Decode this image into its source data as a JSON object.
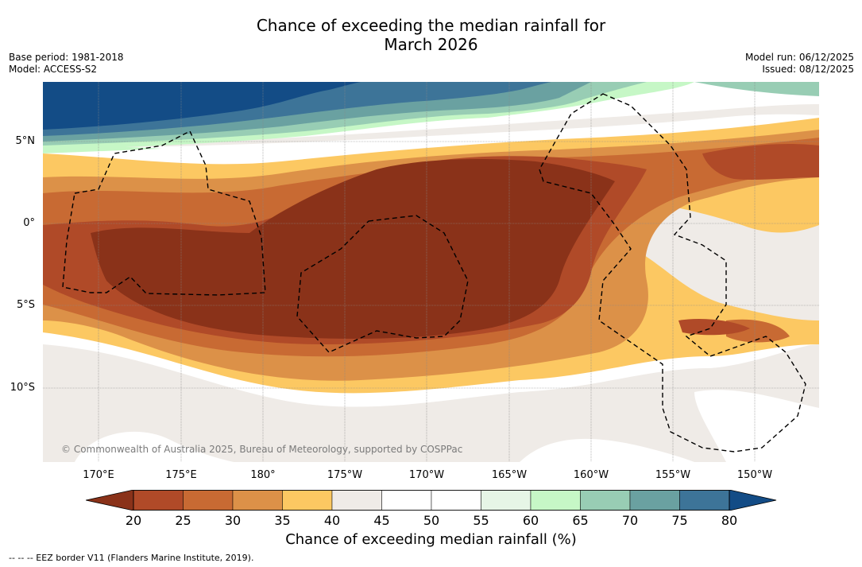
{
  "title": {
    "line1": "Chance of exceeding the median rainfall for",
    "line2": "March 2026"
  },
  "meta": {
    "base_period": "Base period: 1981-2018",
    "model": "Model: ACCESS-S2",
    "model_run": "Model run: 06/12/2025",
    "issued": "Issued: 08/12/2025"
  },
  "map": {
    "lat_labels": [
      "5°N",
      "0°",
      "5°S",
      "10°S"
    ],
    "lon_labels": [
      "170°E",
      "175°E",
      "180°",
      "175°W",
      "170°W",
      "165°W",
      "160°W",
      "155°W",
      "150°W"
    ],
    "copyright": "© Commonwealth of Australia 2025, Bureau of Meteorology, supported by COSPPac",
    "eez_border_style": "dashed black"
  },
  "colorbar": {
    "title": "Chance of exceeding median rainfall (%)",
    "ticks": [
      "20",
      "25",
      "30",
      "35",
      "40",
      "45",
      "50",
      "55",
      "60",
      "65",
      "70",
      "75",
      "80"
    ],
    "under_color": "#8a3219",
    "over_color": "#134c86",
    "colors": [
      "#b04a28",
      "#c86a33",
      "#dc9148",
      "#fcc862",
      "#efebe7",
      "#ffffff",
      "#ffffff",
      "#e6f5e6",
      "#c6f7c6",
      "#98cdb4",
      "#6aa1a1",
      "#3d7498"
    ]
  },
  "legend": {
    "eez_text": "--  --  -- EEZ border V11 (Flanders Marine Institute, 2019)."
  }
}
